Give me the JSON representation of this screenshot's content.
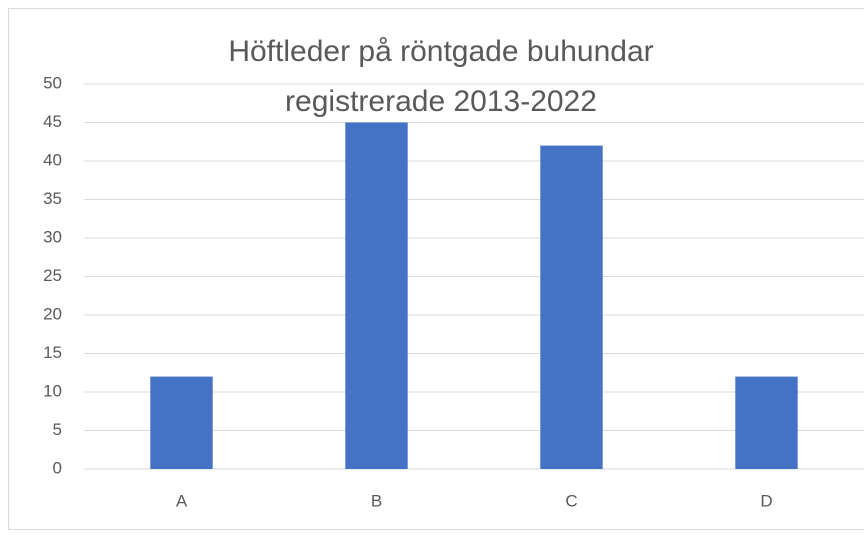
{
  "chart_data": {
    "type": "bar",
    "title": "Höftleder på röntgade buhundar registrerade 2013-2022",
    "categories": [
      "A",
      "B",
      "C",
      "D"
    ],
    "values": [
      12,
      45,
      42,
      12
    ],
    "color": "#4472c4",
    "ylim": [
      0,
      50
    ],
    "yticks": [
      0,
      5,
      10,
      15,
      20,
      25,
      30,
      35,
      40,
      45,
      50
    ],
    "grid": true
  }
}
